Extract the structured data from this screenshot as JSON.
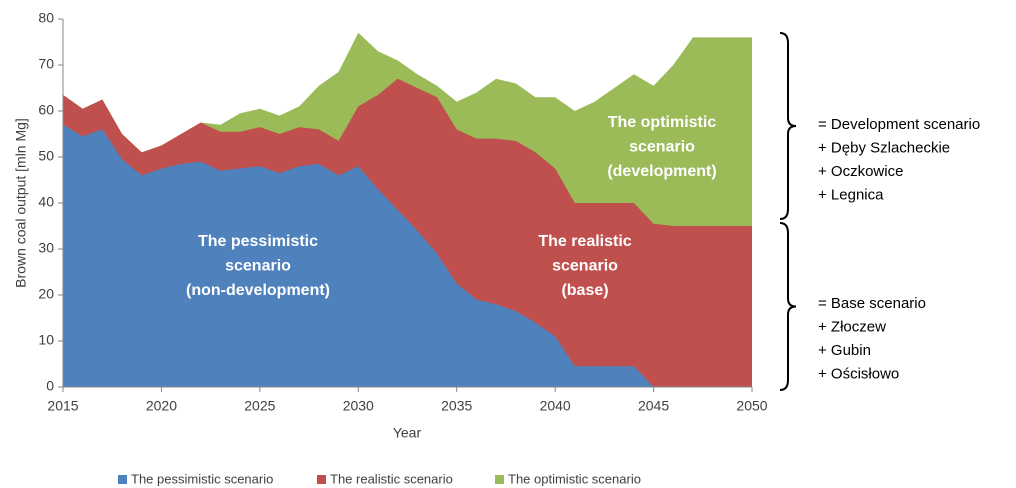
{
  "chart_data": {
    "type": "area",
    "x": [
      2015,
      2016,
      2017,
      2018,
      2019,
      2020,
      2021,
      2022,
      2023,
      2024,
      2025,
      2026,
      2027,
      2028,
      2029,
      2030,
      2031,
      2032,
      2033,
      2034,
      2035,
      2036,
      2037,
      2038,
      2039,
      2040,
      2041,
      2042,
      2043,
      2044,
      2045,
      2046,
      2047,
      2048,
      2049,
      2050
    ],
    "series": [
      {
        "name": "The pessimistic scenario",
        "color": "#4f81bd",
        "values": [
          57,
          54.5,
          56,
          49.5,
          46,
          47.5,
          48.5,
          49,
          47,
          47.5,
          48,
          46.5,
          48,
          48.5,
          46,
          48,
          43,
          38.5,
          34,
          29,
          22.5,
          19,
          18,
          16.5,
          14,
          11,
          4.5,
          4.5,
          4.5,
          4.5,
          0,
          0,
          0,
          0,
          0,
          0
        ]
      },
      {
        "name": "The realistic scenario",
        "color": "#c0504d",
        "values": [
          63.5,
          60.5,
          62.5,
          55,
          51,
          52.5,
          55,
          57.5,
          55.5,
          55.5,
          56.5,
          55,
          56.5,
          56,
          53.5,
          61,
          63.5,
          67,
          65,
          63,
          56,
          54,
          54,
          53.5,
          51,
          47.5,
          40,
          40,
          40,
          40,
          35.5,
          35,
          35,
          35,
          35,
          35
        ]
      },
      {
        "name": "The optimistic scenario",
        "color": "#9bbb59",
        "values": [
          63.5,
          60.5,
          62.5,
          55,
          51,
          52.5,
          55,
          57.5,
          57,
          59.5,
          60.5,
          59,
          61,
          65.5,
          68.5,
          77,
          73,
          71,
          68,
          65.5,
          62,
          64,
          67,
          66,
          63,
          63,
          60,
          62,
          65,
          68,
          65.5,
          70,
          76,
          76,
          76,
          76
        ]
      }
    ],
    "xlabel": "Year",
    "ylabel": "Brown coal output [mln Mg]",
    "xlim": [
      2015,
      2050
    ],
    "xticks": [
      2015,
      2020,
      2025,
      2030,
      2035,
      2040,
      2045,
      2050
    ],
    "ylim": [
      0,
      80
    ],
    "yticks": [
      0,
      10,
      20,
      30,
      40,
      50,
      60,
      70,
      80
    ],
    "grid": false,
    "legend": "bottom",
    "area_labels": [
      [
        "The pessimistic",
        "scenario",
        "(non-development)"
      ],
      [
        "The realistic",
        "scenario",
        "(base)"
      ],
      [
        "The optimistic",
        "scenario",
        "(development)"
      ]
    ],
    "brackets": [
      [
        "= Development scenario",
        "+ Dęby Szlacheckie",
        "+ Oczkowice",
        "+ Legnica"
      ],
      [
        "= Base scenario",
        "+ Złoczew",
        "+ Gubin",
        "+ Ościsłowo"
      ]
    ]
  }
}
